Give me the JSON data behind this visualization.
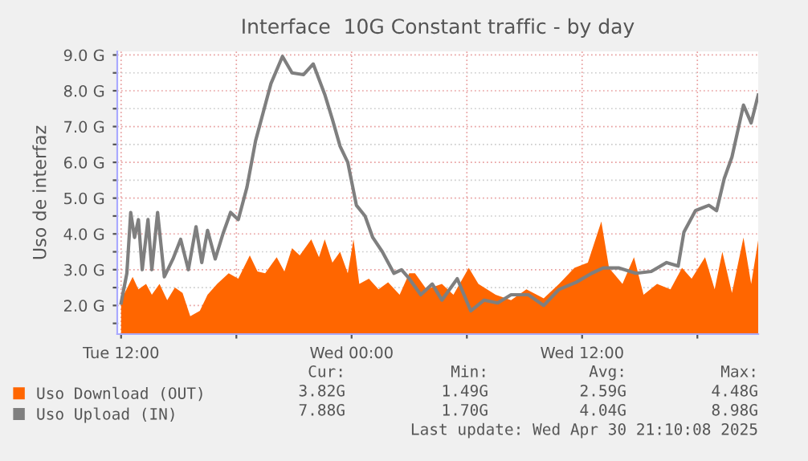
{
  "chart_data": {
    "type": "area",
    "title": "Interface  10G Constant traffic - by day",
    "ylabel": "Uso de interfaz",
    "xlim": [
      "2025-04-29T11:48",
      "2025-04-30T21:10"
    ],
    "xticks": [
      {
        "value": "2025-04-29T12:00",
        "label": "Tue 12:00"
      },
      {
        "value": "2025-04-29T18:00",
        "label": null
      },
      {
        "value": "2025-04-30T00:00",
        "label": "Wed 00:00"
      },
      {
        "value": "2025-04-30T06:00",
        "label": null
      },
      {
        "value": "2025-04-30T12:00",
        "label": "Wed 12:00"
      },
      {
        "value": "2025-04-30T18:00",
        "label": null
      }
    ],
    "ylim": [
      1.2,
      9.1
    ],
    "yticks": [
      {
        "value": 1.5,
        "label": null
      },
      {
        "value": 2,
        "label": "2.0 G"
      },
      {
        "value": 2.5,
        "label": null
      },
      {
        "value": 3,
        "label": "3.0 G"
      },
      {
        "value": 3.5,
        "label": null
      },
      {
        "value": 4,
        "label": "4.0 G"
      },
      {
        "value": 4.5,
        "label": null
      },
      {
        "value": 5,
        "label": "5.0 G"
      },
      {
        "value": 5.5,
        "label": null
      },
      {
        "value": 6,
        "label": "6.0 G"
      },
      {
        "value": 6.5,
        "label": null
      },
      {
        "value": 7,
        "label": "7.0 G"
      },
      {
        "value": 7.5,
        "label": null
      },
      {
        "value": 8,
        "label": "8.0 G"
      },
      {
        "value": 8.5,
        "label": null
      },
      {
        "value": 9,
        "label": "9.0 G"
      }
    ],
    "grid": true,
    "legend": "bottom",
    "series": [
      {
        "name": "Uso Download (OUT)",
        "color": "#ff6600",
        "x": [
          "2025-04-29T12:00",
          "2025-04-29T12:36",
          "2025-04-29T12:54",
          "2025-04-29T13:18",
          "2025-04-29T13:36",
          "2025-04-29T14:00",
          "2025-04-29T14:24",
          "2025-04-29T14:48",
          "2025-04-29T15:12",
          "2025-04-29T15:36",
          "2025-04-29T16:06",
          "2025-04-29T16:30",
          "2025-04-29T17:00",
          "2025-04-29T17:36",
          "2025-04-29T18:06",
          "2025-04-29T18:42",
          "2025-04-29T19:06",
          "2025-04-29T19:30",
          "2025-04-29T20:06",
          "2025-04-29T20:30",
          "2025-04-29T20:54",
          "2025-04-29T21:18",
          "2025-04-29T21:54",
          "2025-04-29T22:18",
          "2025-04-29T22:36",
          "2025-04-29T23:00",
          "2025-04-29T23:24",
          "2025-04-29T23:48",
          "2025-04-30T00:06",
          "2025-04-30T00:24",
          "2025-04-30T00:54",
          "2025-04-30T01:24",
          "2025-04-30T01:54",
          "2025-04-30T02:30",
          "2025-04-30T03:00",
          "2025-04-30T03:18",
          "2025-04-30T03:54",
          "2025-04-30T04:42",
          "2025-04-30T05:18",
          "2025-04-30T06:06",
          "2025-04-30T06:36",
          "2025-04-30T07:30",
          "2025-04-30T08:18",
          "2025-04-30T09:06",
          "2025-04-30T10:00",
          "2025-04-30T10:48",
          "2025-04-30T11:36",
          "2025-04-30T12:18",
          "2025-04-30T13:00",
          "2025-04-30T13:24",
          "2025-04-30T14:06",
          "2025-04-30T14:42",
          "2025-04-30T15:12",
          "2025-04-30T15:54",
          "2025-04-30T16:36",
          "2025-04-30T17:12",
          "2025-04-30T17:42",
          "2025-04-30T18:24",
          "2025-04-30T18:54",
          "2025-04-30T19:18",
          "2025-04-30T19:48",
          "2025-04-30T20:24",
          "2025-04-30T20:48",
          "2025-04-30T21:10"
        ],
        "values": [
          2.15,
          2.8,
          2.45,
          2.6,
          2.3,
          2.6,
          2.15,
          2.5,
          2.35,
          1.7,
          1.85,
          2.3,
          2.6,
          2.9,
          2.75,
          3.4,
          2.95,
          2.9,
          3.35,
          2.95,
          3.6,
          3.4,
          3.85,
          3.35,
          3.85,
          3.2,
          3.5,
          2.9,
          3.85,
          2.6,
          2.75,
          2.45,
          2.65,
          2.3,
          2.9,
          2.9,
          2.45,
          2.6,
          2.3,
          3.05,
          2.6,
          2.3,
          2.15,
          2.45,
          2.2,
          2.6,
          3.05,
          3.2,
          4.35,
          3.05,
          2.6,
          3.35,
          2.3,
          2.6,
          2.45,
          3.05,
          2.75,
          3.35,
          2.45,
          3.5,
          2.35,
          3.9,
          2.6,
          3.82
        ]
      },
      {
        "name": "Uso Upload (IN)",
        "color": "#7f7f7f",
        "type": "line",
        "x": [
          "2025-04-29T12:00",
          "2025-04-29T12:18",
          "2025-04-29T12:30",
          "2025-04-29T12:42",
          "2025-04-29T12:54",
          "2025-04-29T13:06",
          "2025-04-29T13:24",
          "2025-04-29T13:36",
          "2025-04-29T13:54",
          "2025-04-29T14:15",
          "2025-04-29T14:42",
          "2025-04-29T15:06",
          "2025-04-29T15:30",
          "2025-04-29T15:54",
          "2025-04-29T16:12",
          "2025-04-29T16:30",
          "2025-04-29T16:54",
          "2025-04-29T17:18",
          "2025-04-29T17:42",
          "2025-04-29T18:06",
          "2025-04-29T18:33",
          "2025-04-29T19:00",
          "2025-04-29T19:24",
          "2025-04-29T19:48",
          "2025-04-29T20:24",
          "2025-04-29T20:54",
          "2025-04-29T21:30",
          "2025-04-29T22:00",
          "2025-04-29T22:36",
          "2025-04-29T23:00",
          "2025-04-29T23:24",
          "2025-04-29T23:48",
          "2025-04-30T00:15",
          "2025-04-30T00:42",
          "2025-04-30T01:06",
          "2025-04-30T01:36",
          "2025-04-30T02:12",
          "2025-04-30T02:36",
          "2025-04-30T03:00",
          "2025-04-30T03:36",
          "2025-04-30T04:12",
          "2025-04-30T04:42",
          "2025-04-30T05:30",
          "2025-04-30T06:12",
          "2025-04-30T06:54",
          "2025-04-30T07:36",
          "2025-04-30T08:18",
          "2025-04-30T09:12",
          "2025-04-30T10:00",
          "2025-04-30T10:48",
          "2025-04-30T11:42",
          "2025-04-30T12:30",
          "2025-04-30T13:06",
          "2025-04-30T13:54",
          "2025-04-30T14:48",
          "2025-04-30T15:36",
          "2025-04-30T16:24",
          "2025-04-30T17:00",
          "2025-04-30T17:18",
          "2025-04-30T17:54",
          "2025-04-30T18:36",
          "2025-04-30T19:00",
          "2025-04-30T19:24",
          "2025-04-30T19:48",
          "2025-04-30T20:24",
          "2025-04-30T20:48",
          "2025-04-30T21:10"
        ],
        "values": [
          2.07,
          2.9,
          4.6,
          3.9,
          4.4,
          3.0,
          4.4,
          3.0,
          4.6,
          2.8,
          3.3,
          3.85,
          3.0,
          4.2,
          3.2,
          4.1,
          3.3,
          4.0,
          4.6,
          4.4,
          5.3,
          6.6,
          7.4,
          8.2,
          8.96,
          8.5,
          8.45,
          8.75,
          7.9,
          7.2,
          6.45,
          6.0,
          4.8,
          4.5,
          3.9,
          3.5,
          2.9,
          3.0,
          2.75,
          2.3,
          2.6,
          2.15,
          2.75,
          1.85,
          2.15,
          2.07,
          2.3,
          2.3,
          2.0,
          2.45,
          2.65,
          2.9,
          3.05,
          3.05,
          2.9,
          2.95,
          3.2,
          3.1,
          4.05,
          4.65,
          4.8,
          4.65,
          5.55,
          6.15,
          7.6,
          7.1,
          7.88
        ]
      }
    ],
    "annotations": [
      "Cur:",
      "Min:",
      "Avg:",
      "Max:",
      "3.82G",
      "1.49G",
      "2.59G",
      "4.48G",
      "7.88G",
      "1.70G",
      "4.04G",
      "8.98G",
      "Last update: Wed Apr 30 21:10:08 2025"
    ]
  }
}
